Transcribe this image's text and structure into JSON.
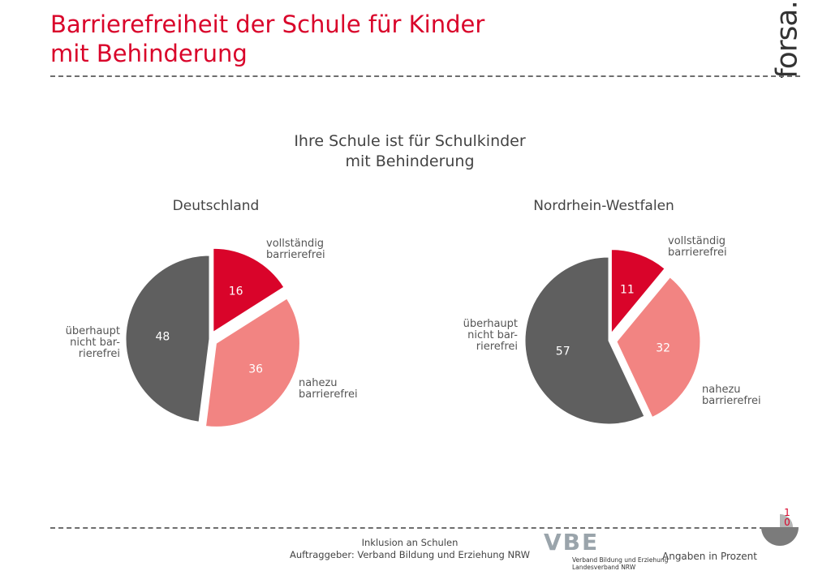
{
  "header": {
    "title_line1": "Barrierefreiheit der Schule für Kinder",
    "title_line2": "mit Behinderung",
    "logo_text": "forsa."
  },
  "chart_data": [
    {
      "type": "pie",
      "title_line1": "Ihre Schule ist für Schulkinder",
      "title_line2": "mit Behinderung",
      "subtitle": "Deutschland",
      "slices": [
        {
          "label": [
            "vollständig",
            "barrierefrei"
          ],
          "value": 16,
          "value_label": "16",
          "color": "#d9042a",
          "exploded": true
        },
        {
          "label": [
            "nahezu",
            "barrierefrei"
          ],
          "value": 36,
          "value_label": "36",
          "color": "#f28482",
          "exploded": true
        },
        {
          "label": [
            "überhaupt",
            "nicht bar-",
            "rierefrei"
          ],
          "value": 48,
          "value_label": "48",
          "color": "#5f5f5f",
          "exploded": false
        }
      ]
    },
    {
      "type": "pie",
      "subtitle": "Nordrhein-Westfalen",
      "slices": [
        {
          "label": [
            "vollständig",
            "barrierefrei"
          ],
          "value": 11,
          "value_label": "11",
          "color": "#d9042a",
          "exploded": true
        },
        {
          "label": [
            "nahezu",
            "barrierefrei"
          ],
          "value": 32,
          "value_label": "32",
          "color": "#f28482",
          "exploded": true
        },
        {
          "label": [
            "überhaupt",
            "nicht bar-",
            "rierefrei"
          ],
          "value": 57,
          "value_label": "57",
          "color": "#5f5f5f",
          "exploded": false
        }
      ]
    }
  ],
  "footer": {
    "line1": "Inklusion an Schulen",
    "line2": "Auftraggeber: Verband Bildung und Erziehung NRW",
    "vbe_letters": "VBE",
    "vbe_sub1": "Verband Bildung und Erziehung",
    "vbe_sub2": "Landesverband NRW",
    "note": "Angaben in Prozent",
    "page_digit1": "1",
    "page_digit2": "0"
  }
}
